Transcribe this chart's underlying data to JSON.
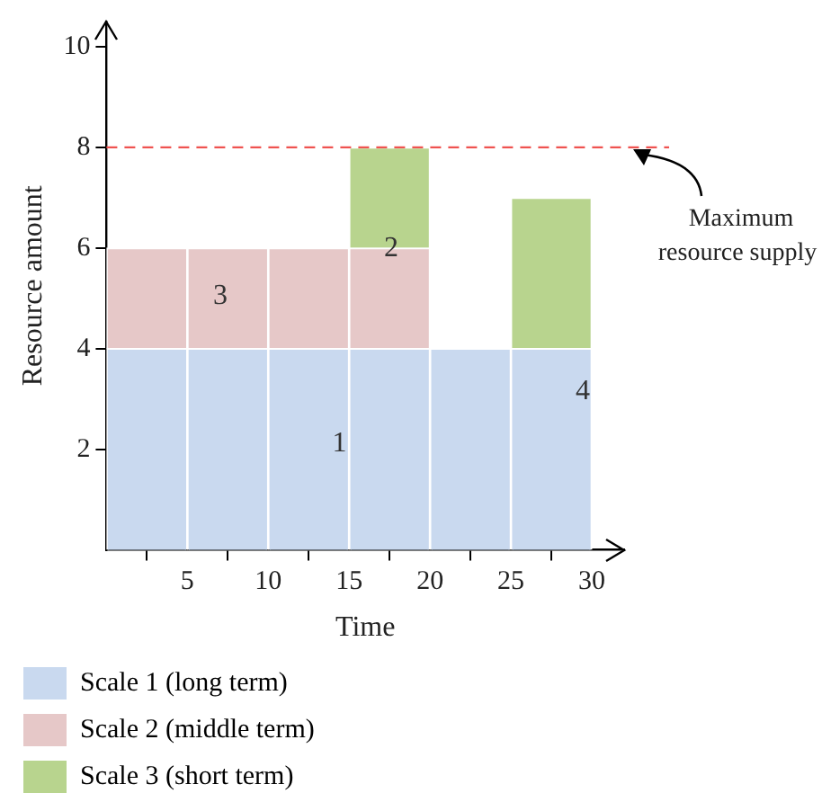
{
  "chart_data": {
    "type": "bar",
    "stacked": true,
    "xlabel": "Time",
    "ylabel": "Resource amount",
    "x": [
      2.5,
      7.5,
      12.5,
      17.5,
      22.5,
      27.5
    ],
    "xlim": [
      0,
      32
    ],
    "xticks": [
      5,
      10,
      15,
      20,
      25,
      30
    ],
    "ylim": [
      0,
      10.5
    ],
    "yticks": [
      2,
      4,
      6,
      8,
      10
    ],
    "series": [
      {
        "name": "Scale 1 (long term)",
        "color": "#c9d9ef",
        "values": [
          4,
          4,
          4,
          4,
          4,
          4
        ]
      },
      {
        "name": "Scale 2 (middle term)",
        "color": "#e6c8c8",
        "values": [
          2,
          2,
          2,
          2,
          null,
          null
        ]
      },
      {
        "name": "Scale 3 (short term)",
        "color": "#b8d48e",
        "values": [
          null,
          null,
          null,
          2,
          null,
          3
        ]
      }
    ],
    "ref_lines": [
      {
        "axis": "y",
        "value": 8,
        "label": "Maximum resource supply",
        "color": "#ef5350",
        "line_style": "dashed"
      }
    ],
    "annotations": [
      "1",
      "3",
      "2",
      "4"
    ],
    "grid": false,
    "legend": "bottom"
  }
}
